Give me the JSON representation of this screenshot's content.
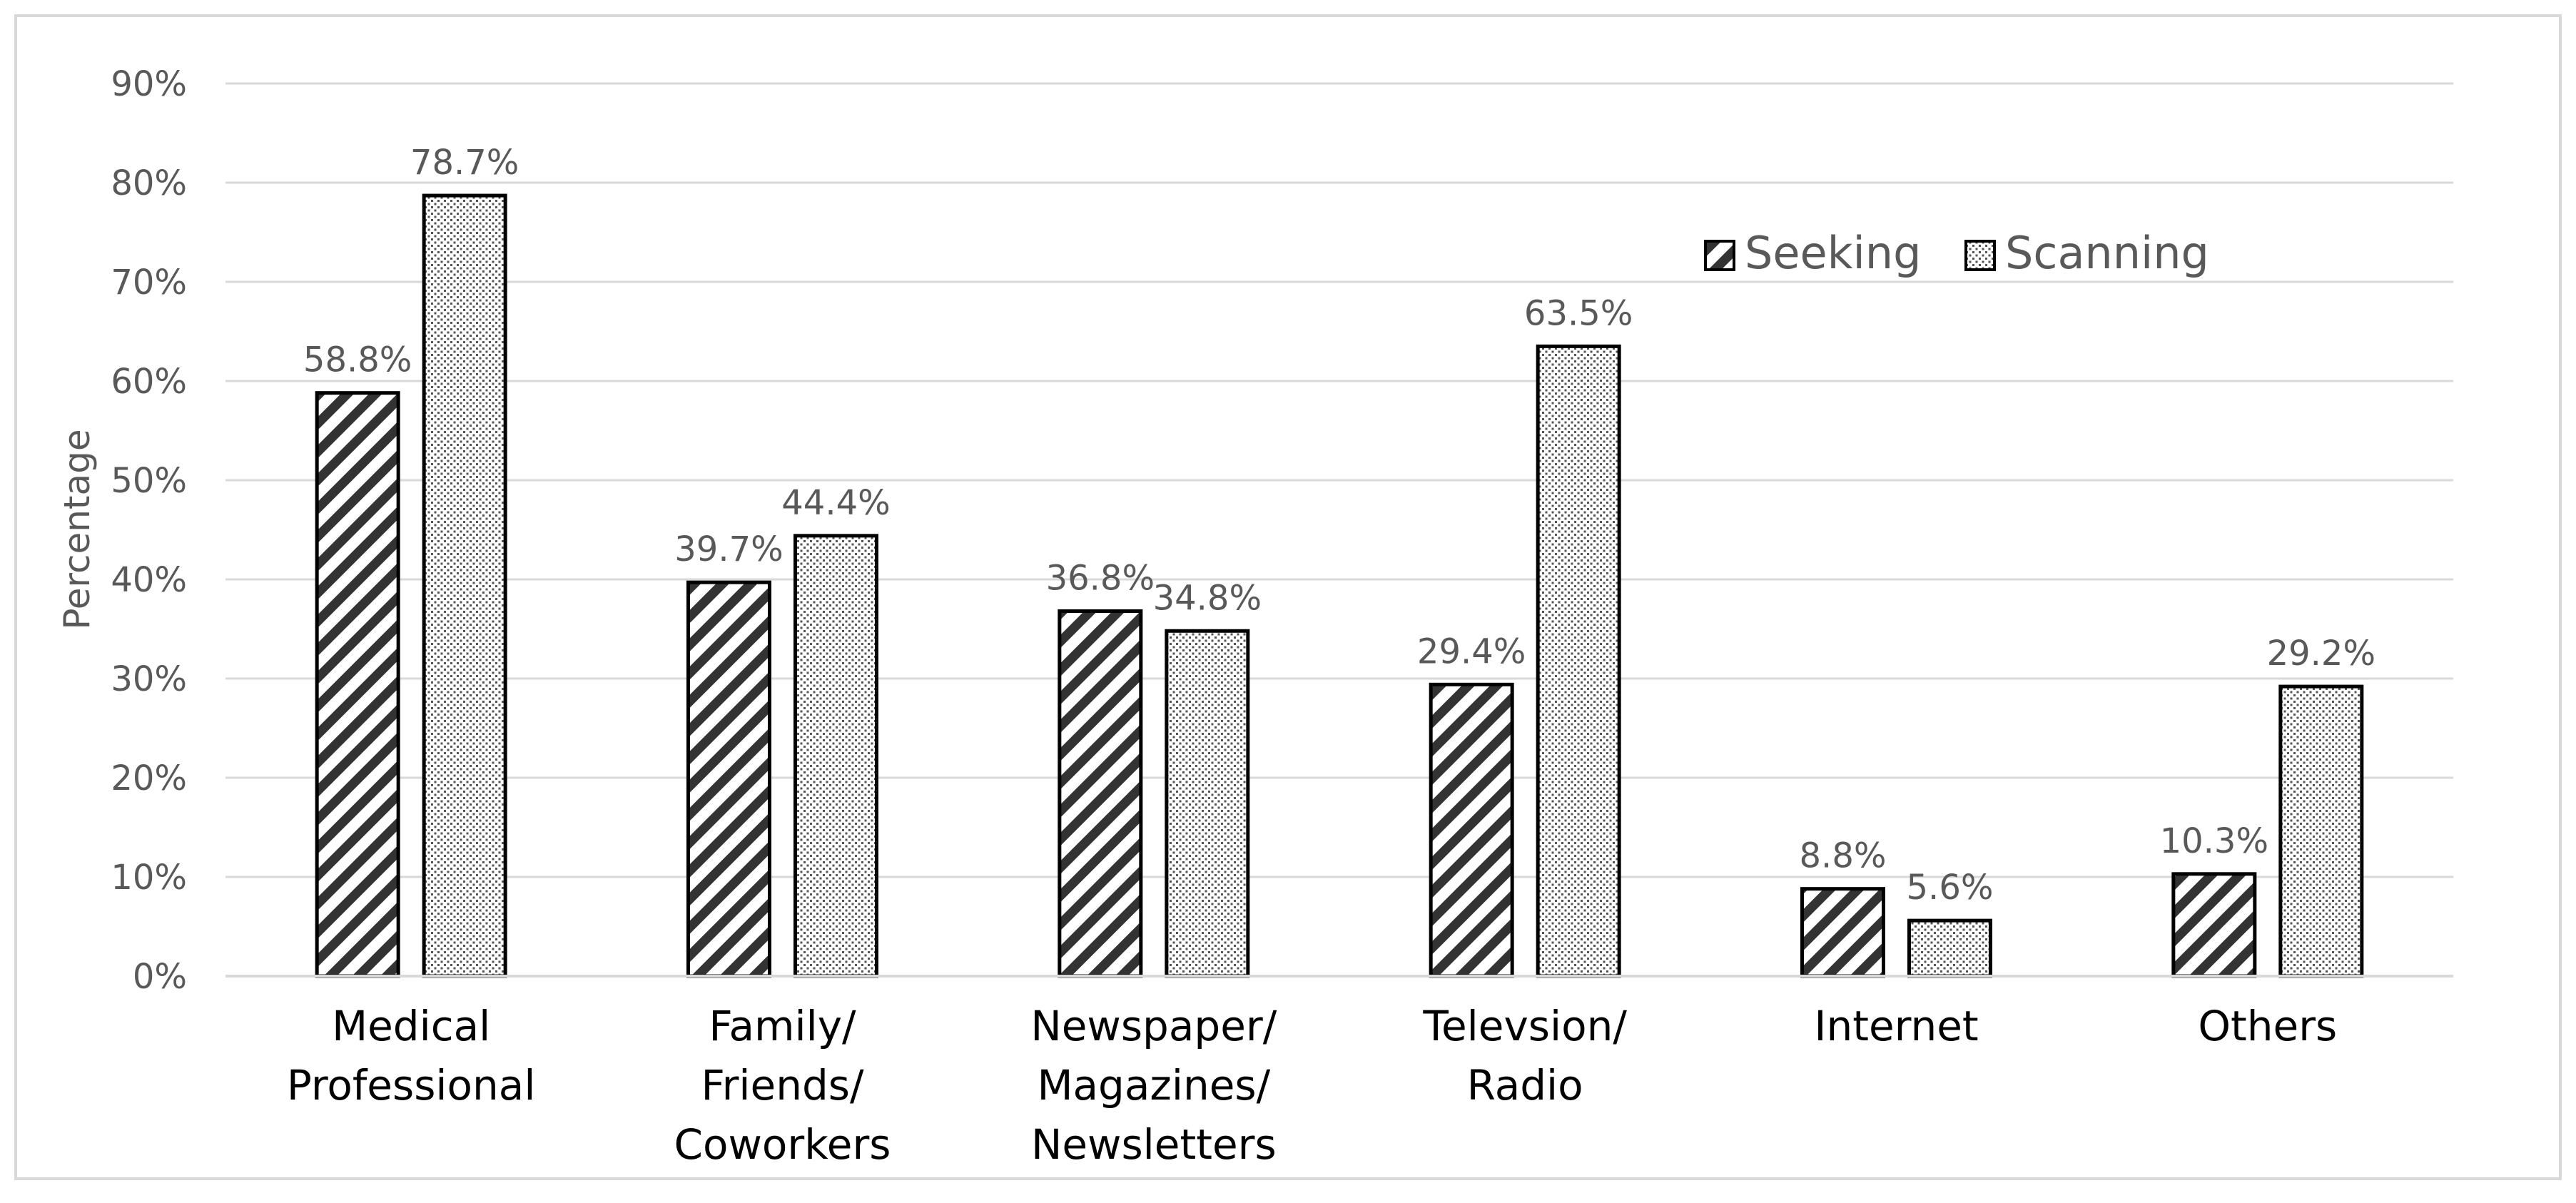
{
  "chart_data": {
    "type": "bar",
    "title": "",
    "xlabel": "",
    "ylabel": "Percentage",
    "ylim": [
      0,
      90
    ],
    "y_ticks": [
      "0%",
      "10%",
      "20%",
      "30%",
      "40%",
      "50%",
      "60%",
      "70%",
      "80%",
      "90%"
    ],
    "grid": true,
    "legend_position": "top-right",
    "categories": [
      [
        "Medical",
        "Professional"
      ],
      [
        "Family/",
        "Friends/",
        "Coworkers"
      ],
      [
        "Newspaper/",
        "Magazines/",
        "Newsletters"
      ],
      [
        "Televsion/",
        "Radio"
      ],
      [
        "Internet"
      ],
      [
        "Others"
      ]
    ],
    "series": [
      {
        "name": "Seeking",
        "pattern": "diagonal-hatch",
        "values": [
          58.8,
          39.7,
          36.8,
          29.4,
          8.8,
          10.3
        ],
        "labels": [
          "58.8%",
          "39.7%",
          "36.8%",
          "29.4%",
          "8.8%",
          "10.3%"
        ]
      },
      {
        "name": "Scanning",
        "pattern": "dots",
        "values": [
          78.7,
          44.4,
          34.8,
          63.5,
          5.6,
          29.2
        ],
        "labels": [
          "78.7%",
          "44.4%",
          "34.8%",
          "63.5%",
          "5.6%",
          "29.2%"
        ]
      }
    ],
    "colors": {
      "border": "#000000",
      "grid": "#d9d9d9",
      "text": "#595959",
      "category_text": "#000000",
      "frame": "#d9d9d9"
    }
  }
}
